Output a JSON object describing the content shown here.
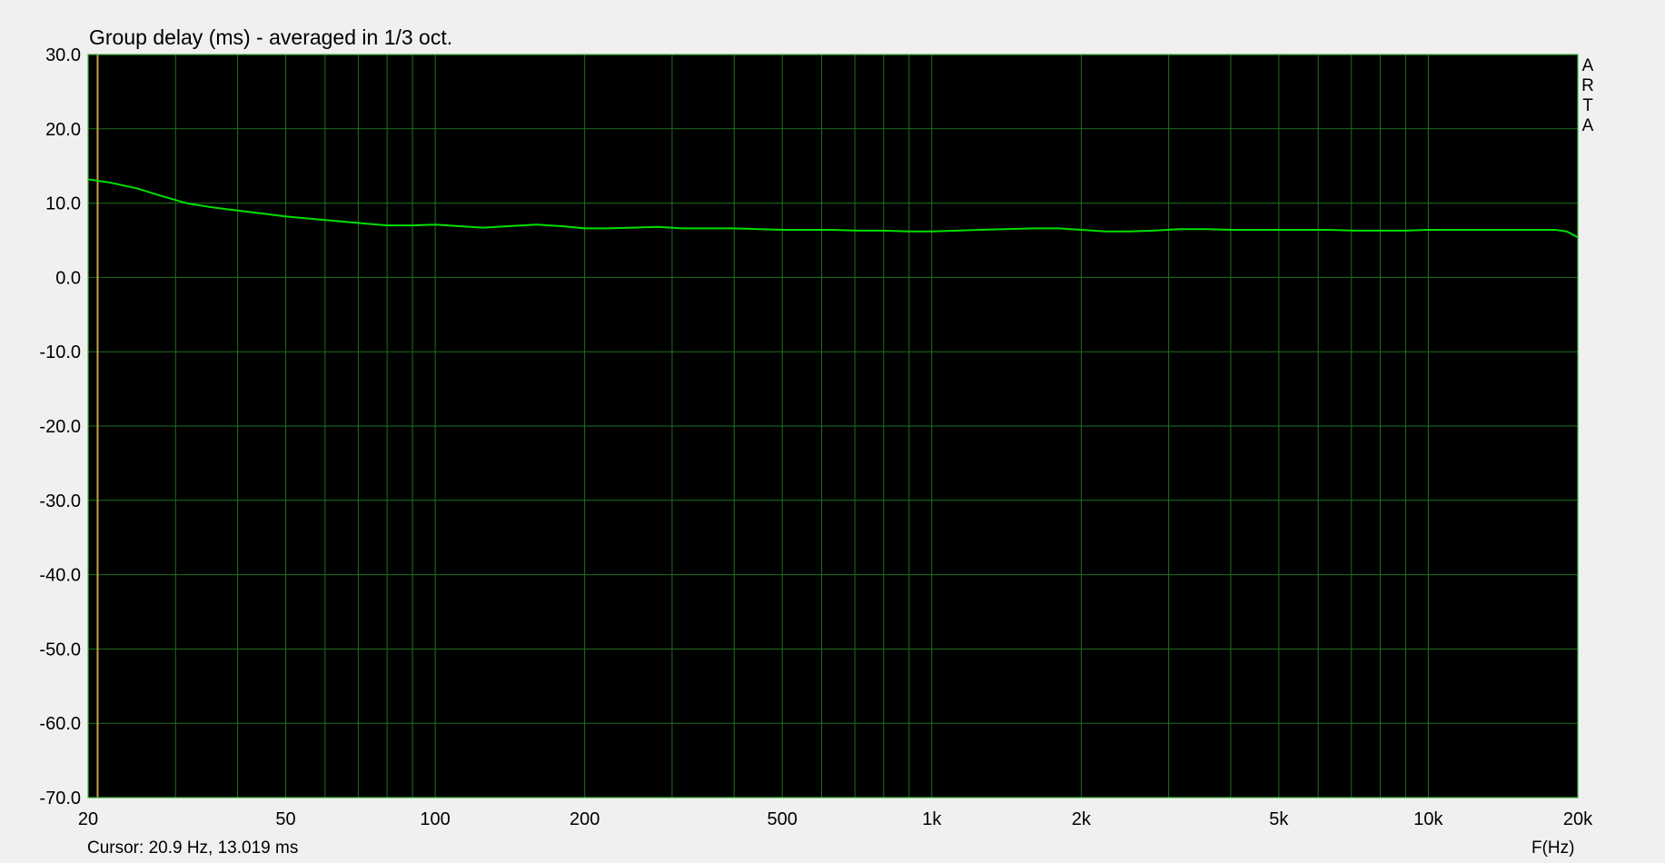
{
  "chart_data": {
    "type": "line",
    "title": "Group delay (ms) - averaged in 1/3 oct.",
    "xlabel": "F(Hz)",
    "ylabel": "",
    "x_scale": "log",
    "xlim": [
      20,
      20000
    ],
    "ylim": [
      -70,
      30
    ],
    "grid": true,
    "y_ticks": [
      30,
      20,
      10,
      0,
      -10,
      -20,
      -30,
      -40,
      -50,
      -60,
      -70
    ],
    "y_tick_labels": [
      "30.0",
      "20.0",
      "10.0",
      "0.0",
      "-10.0",
      "-20.0",
      "-30.0",
      "-40.0",
      "-50.0",
      "-60.0",
      "-70.0"
    ],
    "x_ticks": [
      20,
      50,
      100,
      200,
      500,
      1000,
      2000,
      5000,
      10000,
      20000
    ],
    "x_tick_labels": [
      "20",
      "50",
      "100",
      "200",
      "500",
      "1k",
      "2k",
      "5k",
      "10k",
      "20k"
    ],
    "x_minor_grid": [
      30,
      40,
      60,
      70,
      80,
      90,
      300,
      400,
      600,
      700,
      800,
      900,
      3000,
      4000,
      6000,
      7000,
      8000,
      9000
    ],
    "cursor": {
      "x": 20.9,
      "label": "Cursor: 20.9 Hz, 13.019 ms"
    },
    "watermark": "ARTA",
    "series": [
      {
        "color": "#00e000",
        "x": [
          20,
          22,
          25,
          28,
          31.5,
          35,
          40,
          45,
          50,
          56,
          63,
          71,
          80,
          90,
          100,
          112,
          125,
          140,
          160,
          180,
          200,
          224,
          250,
          280,
          315,
          355,
          400,
          450,
          500,
          560,
          630,
          710,
          800,
          900,
          1000,
          1120,
          1250,
          1400,
          1600,
          1800,
          2000,
          2240,
          2500,
          2800,
          3150,
          3550,
          4000,
          4500,
          5000,
          5600,
          6300,
          7100,
          8000,
          9000,
          10000,
          11200,
          12500,
          14000,
          16000,
          18000,
          19000,
          20000
        ],
        "y": [
          13.2,
          12.8,
          12.0,
          11.0,
          10.0,
          9.5,
          9.0,
          8.6,
          8.2,
          7.9,
          7.6,
          7.3,
          7.0,
          7.0,
          7.1,
          6.9,
          6.7,
          6.9,
          7.1,
          6.9,
          6.6,
          6.6,
          6.7,
          6.8,
          6.6,
          6.6,
          6.6,
          6.5,
          6.4,
          6.4,
          6.4,
          6.3,
          6.3,
          6.2,
          6.2,
          6.3,
          6.4,
          6.5,
          6.6,
          6.6,
          6.4,
          6.2,
          6.2,
          6.3,
          6.5,
          6.5,
          6.4,
          6.4,
          6.4,
          6.4,
          6.4,
          6.3,
          6.3,
          6.3,
          6.4,
          6.4,
          6.4,
          6.4,
          6.4,
          6.4,
          6.2,
          5.4
        ]
      }
    ]
  },
  "colors": {
    "background": "#f0f0f0",
    "plot_background": "#000000",
    "grid": "#1f6f1f",
    "frame": "#3cb43c",
    "trace": "#00e000",
    "cursor": "#c8a050"
  }
}
